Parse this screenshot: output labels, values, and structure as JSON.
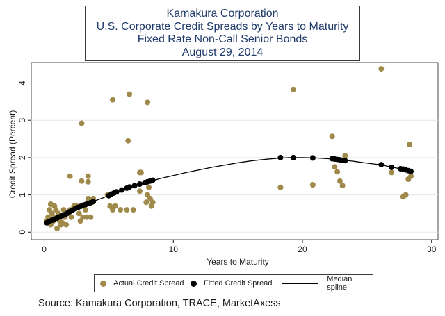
{
  "title_lines": [
    "Kamakura Corporation",
    "U.S. Corporate Credit Spreads by Years to Maturity",
    "Fixed Rate Non-Call Senior Bonds",
    "August 29, 2014"
  ],
  "source": "Source: Kamakura Corporation, TRACE, MarketAxess",
  "colors": {
    "actual": "#a08a4a",
    "fitted": "#000000",
    "spline": "#000000",
    "axis": "#1a1a1a"
  },
  "chart_data": {
    "type": "scatter",
    "xlabel": "Years to Maturity",
    "ylabel": "Credit Spread (Percent)",
    "xlim": [
      -1,
      30.5
    ],
    "ylim": [
      -0.2,
      4.55
    ],
    "x_ticks": [
      0,
      10,
      20,
      30
    ],
    "y_ticks": [
      0,
      1,
      2,
      3,
      4
    ],
    "legend": [
      "Actual Credit Spread",
      "Fitted Credit Spread",
      "Median spline"
    ],
    "series": [
      {
        "name": "Actual Credit Spread",
        "x": [
          0.2,
          0.3,
          0.4,
          0.5,
          0.6,
          0.7,
          0.8,
          0.9,
          1.0,
          1.1,
          1.2,
          1.3,
          1.5,
          1.6,
          1.7,
          1.8,
          2.0,
          2.1,
          2.3,
          2.5,
          2.7,
          2.8,
          2.9,
          3.0,
          3.1,
          3.2,
          3.3,
          3.4,
          3.5,
          3.6,
          3.7,
          3.8,
          2.9,
          3.4,
          4.9,
          5.1,
          5.3,
          5.5,
          5.9,
          6.4,
          6.9,
          7.4,
          7.5,
          7.9,
          8.0,
          8.1,
          8.2,
          8.3,
          8.4,
          5.3,
          6.6,
          6.5,
          8.0,
          7.4,
          2.0,
          2.9,
          3.4,
          18.3,
          19.3,
          20.8,
          22.3,
          22.5,
          22.7,
          22.9,
          23.1,
          23.3,
          26.1,
          26.9,
          27.8,
          28.0,
          28.3,
          28.4,
          28.2,
          0.5,
          1.4,
          0.8,
          1.2
        ],
        "values": [
          0.3,
          0.4,
          0.6,
          0.2,
          0.5,
          0.3,
          0.4,
          0.6,
          0.1,
          0.5,
          0.3,
          0.2,
          0.6,
          0.4,
          0.2,
          0.5,
          0.6,
          0.4,
          0.7,
          0.7,
          0.5,
          0.3,
          0.7,
          0.4,
          0.7,
          0.6,
          0.4,
          0.9,
          0.8,
          0.4,
          0.8,
          0.9,
          1.37,
          1.5,
          1.0,
          0.7,
          0.6,
          0.7,
          0.6,
          0.6,
          0.6,
          1.1,
          1.6,
          0.8,
          1.0,
          1.2,
          0.9,
          0.7,
          0.8,
          3.55,
          3.7,
          2.45,
          3.48,
          1.6,
          1.5,
          2.92,
          1.35,
          1.2,
          3.83,
          1.27,
          2.57,
          1.75,
          1.62,
          1.37,
          1.25,
          2.05,
          4.38,
          1.6,
          0.95,
          1.0,
          2.35,
          1.5,
          1.42,
          0.75,
          0.25,
          0.7,
          0.45
        ]
      },
      {
        "name": "Fitted Credit Spread",
        "x": [
          0.2,
          0.4,
          0.6,
          0.8,
          1.0,
          1.2,
          1.4,
          1.6,
          1.8,
          2.0,
          2.2,
          2.4,
          2.6,
          2.8,
          3.0,
          3.2,
          3.4,
          3.6,
          3.8,
          5.0,
          5.2,
          5.4,
          5.6,
          6.0,
          6.4,
          6.6,
          7.0,
          7.4,
          7.8,
          8.0,
          8.2,
          8.4,
          18.3,
          19.3,
          20.8,
          22.3,
          22.5,
          22.7,
          22.9,
          23.1,
          23.3,
          26.1,
          26.9,
          27.6,
          27.8,
          28.0,
          28.2,
          28.4
        ],
        "values": [
          0.25,
          0.29,
          0.32,
          0.35,
          0.38,
          0.41,
          0.44,
          0.47,
          0.51,
          0.55,
          0.59,
          0.63,
          0.66,
          0.69,
          0.72,
          0.74,
          0.77,
          0.79,
          0.82,
          0.98,
          1.02,
          1.05,
          1.08,
          1.13,
          1.18,
          1.21,
          1.25,
          1.29,
          1.33,
          1.35,
          1.37,
          1.39,
          2.0,
          2.0,
          1.99,
          1.97,
          1.96,
          1.95,
          1.94,
          1.93,
          1.92,
          1.81,
          1.74,
          1.7,
          1.69,
          1.67,
          1.65,
          1.63
        ]
      },
      {
        "name": "Median spline",
        "x": [
          0,
          1,
          2,
          3,
          4,
          5,
          6,
          7,
          8,
          9,
          10,
          11,
          12,
          13,
          14,
          15,
          16,
          17,
          18,
          19,
          20,
          21,
          22,
          23,
          24,
          25,
          26,
          27,
          28,
          28.5
        ],
        "values": [
          0.22,
          0.38,
          0.55,
          0.72,
          0.85,
          0.98,
          1.1,
          1.22,
          1.34,
          1.44,
          1.52,
          1.6,
          1.67,
          1.74,
          1.8,
          1.86,
          1.91,
          1.95,
          1.98,
          2.0,
          2.0,
          1.99,
          1.97,
          1.94,
          1.9,
          1.85,
          1.81,
          1.74,
          1.67,
          1.62
        ]
      }
    ]
  }
}
